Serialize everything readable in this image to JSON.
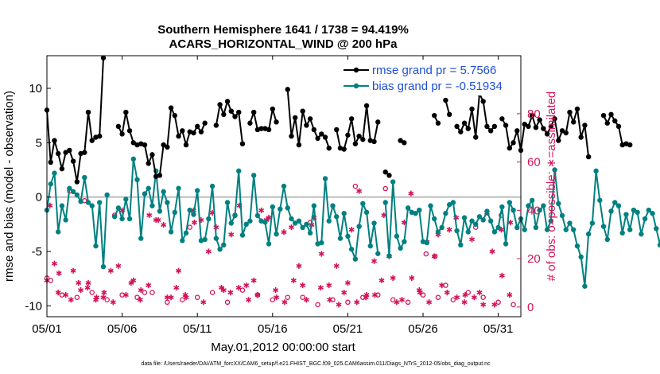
{
  "chart_data": {
    "type": "line",
    "title": [
      "Southern Hemisphere 1641 / 1738 = 94.419%",
      "ACARS_HORIZONTAL_WIND @ 200 hPa"
    ],
    "xlabel": "May.01,2012 00:00:00 start",
    "ylabel_left": "rmse and bias (model - observation)",
    "ylabel_right": "# of obs: o=possible; ∗=assimilated",
    "footer": "data file: /Users/raeder/DAI/ATM_forcXX/CAM6_setup/f.e21.FHIST_BGC.f09_025.CAM6assim.011/Diags_NTrS_2012-05/obs_diag_output.nc",
    "xlim": [
      0,
      31.5
    ],
    "ylim_left": [
      -11,
      13
    ],
    "ylim_right": [
      -4,
      104
    ],
    "x_ticks": [
      {
        "value": 0,
        "label": "05/01"
      },
      {
        "value": 5,
        "label": "05/06"
      },
      {
        "value": 10,
        "label": "05/11"
      },
      {
        "value": 15,
        "label": "05/16"
      },
      {
        "value": 20,
        "label": "05/21"
      },
      {
        "value": 25,
        "label": "05/26"
      },
      {
        "value": 30,
        "label": "05/31"
      }
    ],
    "y_ticks_left": [
      {
        "value": 10,
        "label": "10"
      },
      {
        "value": 5,
        "label": "5"
      },
      {
        "value": 0,
        "label": "0"
      },
      {
        "value": -5,
        "label": "-5"
      },
      {
        "value": -10,
        "label": "-10"
      }
    ],
    "y_ticks_right": [
      {
        "value": 80,
        "label": "80"
      },
      {
        "value": 60,
        "label": "60"
      },
      {
        "value": 40,
        "label": "40"
      },
      {
        "value": 20,
        "label": "20"
      },
      {
        "value": 0,
        "label": "0"
      }
    ],
    "x_step_days": 0.25,
    "colors": {
      "rmse": "#000000",
      "bias": "#008080",
      "obs": "#d4145a",
      "zero_line": "#bbbbbb",
      "legend_text": "#1f4fd6"
    },
    "series": [
      {
        "name": "rmse",
        "legend": "rmse grand pr = 5.7566",
        "values": [
          8.0,
          3.2,
          5.2,
          4.0,
          2.6,
          4.1,
          4.3,
          3.3,
          1.4,
          4.0,
          4.1,
          7.8,
          5.2,
          5.5,
          5.6,
          12.8,
          null,
          null,
          null,
          6.5,
          5.8,
          7.8,
          6.1,
          5.0,
          4.8,
          4.9,
          4.8,
          3.1,
          3.9,
          1.9,
          2.0,
          4.8,
          4.6,
          8.2,
          7.5,
          5.6,
          6.1,
          4.8,
          6.0,
          5.9,
          6.5,
          6.0,
          6.8,
          null,
          null,
          6.6,
          8.5,
          7.6,
          8.8,
          7.9,
          7.4,
          7.8,
          4.9,
          null,
          6.8,
          7.8,
          6.2,
          6.3,
          6.3,
          6.2,
          8.1,
          6.9,
          null,
          null,
          9.9,
          5.6,
          7.3,
          4.8,
          7.9,
          6.6,
          7.2,
          6.2,
          5.4,
          5.8,
          5.5,
          4.5,
          null,
          6.2,
          4.5,
          4.4,
          5.7,
          7.2,
          4.9,
          5.6,
          5.3,
          8.4,
          5.2,
          5.1,
          6.9,
          null,
          2.3,
          2.0,
          null,
          null,
          5.2,
          5.0,
          null,
          null,
          null,
          null,
          null,
          null,
          null,
          7.5,
          6.8,
          null,
          8.9,
          7.6,
          null,
          6.5,
          6.0,
          6.8,
          6.3,
          8.1,
          5.5,
          9.5,
          8.8,
          6.5,
          6.1,
          6.5,
          null,
          7.2,
          6.6,
          4.5,
          5.0,
          6.1,
          4.3,
          6.7,
          6.5,
          7.5,
          6.4,
          7.1,
          6.3,
          5.8,
          6.5,
          7.2,
          5.2,
          6.1,
          5.9,
          7.8,
          6.9,
          8.1,
          5.5,
          6.6,
          3.7,
          null,
          null,
          null,
          7.5,
          6.8,
          7.6,
          7.0,
          6.5,
          4.8,
          4.9,
          4.8
        ],
        "connected": true
      },
      {
        "name": "bias",
        "legend": "bias grand pr = -0.51934",
        "values": [
          -1.2,
          1.2,
          2.2,
          -3.2,
          -0.8,
          -2.1,
          0.8,
          0.5,
          0.2,
          -0.4,
          1.8,
          -0.5,
          -0.8,
          -4.5,
          -0.5,
          -6.4,
          0.2,
          null,
          -1.8,
          -1.0,
          -2.0,
          -0.2,
          -2.0,
          3.5,
          1.6,
          -3.8,
          0.3,
          0.8,
          -0.8,
          2.4,
          -1.3,
          0.5,
          -0.5,
          -3.2,
          -1.4,
          0.8,
          -4.0,
          -3.3,
          -1.2,
          -1.6,
          0.6,
          -4.0,
          -3.9,
          -2.0,
          1.0,
          -3.8,
          -4.8,
          -4.4,
          -0.5,
          -2.4,
          -1.7,
          2.4,
          -3.5,
          -2.5,
          -2.2,
          2.0,
          -1.7,
          -2.2,
          -2.3,
          -4.3,
          -0.9,
          -3.4,
          -1.1,
          1.0,
          -1.0,
          -2.0,
          -2.4,
          -2.2,
          -2.8,
          -2.5,
          -3.3,
          -0.8,
          -4.3,
          -4.2,
          1.7,
          -2.2,
          -0.8,
          -1.8,
          -3.8,
          -1.5,
          -3.6,
          -4.8,
          -5.7,
          -2.7,
          -0.6,
          -1.4,
          -4.5,
          -2.4,
          -5.2,
          null,
          -0.5,
          -5.4,
          1.4,
          -3.6,
          -4.7,
          -4.1,
          -1.0,
          -1.4,
          -1.5,
          -1.2,
          -4.1,
          -4.2,
          -0.8,
          -2.0,
          -3.2,
          -2.8,
          -1.5,
          -0.7,
          -0.5,
          -3.1,
          -4.4,
          -1.9,
          -3.2,
          -2.2,
          -2.5,
          -1.8,
          -2.1,
          -1.3,
          -2.2,
          -3.2,
          -2.8,
          -0.9,
          -4.3,
          -0.5,
          -1.2,
          -2.8,
          -2.0,
          -3.0,
          -0.8,
          -0.3,
          -2.8,
          -1.2,
          -0.8,
          -3.0,
          -2.2,
          2.5,
          -0.6,
          -1.7,
          -3.0,
          -2.4,
          -3.0,
          -4.5,
          -5.5,
          -8.2,
          -3.4,
          -2.4,
          2.4,
          -0.3,
          -2.7,
          -3.9,
          -1.3,
          -0.5,
          -0.8,
          -3.3,
          -1.6,
          -3.0,
          -1.2,
          -1.4,
          -3.4,
          -2.0,
          -1.2,
          -1.5,
          -2.9,
          -4.4,
          -1.1,
          -1.0,
          -2.0,
          -3.2
        ],
        "connected": true
      },
      {
        "name": "obs_possible",
        "marker": "o",
        "x": [
          0,
          0.25,
          1,
          2,
          3,
          4,
          5,
          6,
          7,
          8,
          9,
          10,
          11,
          12,
          13,
          14,
          15,
          16,
          17,
          18,
          19,
          20,
          21,
          22,
          23,
          24,
          25,
          26,
          27,
          28,
          29,
          30,
          31,
          1.5,
          2.5,
          4.5,
          6.5,
          9.5,
          12.5,
          17.5,
          20.5,
          22.5,
          25.2,
          25.8,
          26.5,
          28.5,
          30.2
        ],
        "values": [
          12,
          11,
          5,
          4,
          6,
          3,
          5,
          4,
          6,
          2,
          3,
          4,
          6,
          2,
          7,
          5,
          3,
          4,
          4,
          1,
          3,
          2,
          4,
          5,
          3,
          2,
          5,
          4,
          3,
          6,
          4,
          2,
          1,
          48,
          44,
          38,
          6,
          33,
          38,
          35,
          50,
          49,
          22,
          21,
          9,
          33,
          38
        ]
      },
      {
        "name": "obs_assimilated",
        "marker": "*",
        "x": [
          0,
          0.5,
          0.75,
          1.25,
          1.75,
          2.25,
          2.75,
          3.25,
          3.75,
          4.25,
          4.75,
          5.25,
          5.75,
          6.25,
          6.75,
          7.25,
          7.75,
          8.25,
          8.75,
          9.25,
          9.75,
          10.25,
          10.75,
          11.25,
          11.75,
          12.25,
          12.75,
          13.25,
          13.75,
          14.25,
          14.75,
          15.25,
          15.75,
          16.25,
          16.75,
          17.25,
          17.75,
          18.25,
          18.75,
          19.25,
          19.75,
          20.25,
          20.75,
          21.25,
          21.75,
          22.25,
          22.75,
          23.25,
          23.75,
          24.25,
          24.75,
          25.25,
          25.75,
          26.25,
          26.75,
          27.25,
          27.75,
          28.25,
          28.75,
          29.25,
          29.75,
          30.25,
          30.75,
          0.2,
          0.8,
          1.6,
          2.1,
          2.7,
          3.3,
          3.8,
          4.4,
          5.0,
          5.6,
          6.2,
          6.8,
          7.4,
          8.0,
          8.6,
          9.2,
          9.8,
          10.4,
          11.0,
          11.6,
          12.2,
          12.8,
          13.4,
          14.0,
          14.6,
          15.2,
          15.8,
          16.4,
          17.0,
          17.6,
          18.2,
          18.8,
          19.4,
          20.0,
          20.6,
          21.2,
          21.8,
          22.4,
          23.0,
          23.6,
          24.2,
          24.8,
          25.4,
          26.0,
          26.6,
          27.2,
          27.8,
          28.4,
          29.0,
          29.6,
          30.2,
          30.8
        ],
        "values": [
          11,
          18,
          6,
          5,
          15,
          7,
          10,
          3,
          4,
          15,
          17,
          5,
          11,
          7,
          9,
          36,
          34,
          4,
          15,
          4,
          40,
          36,
          23,
          33,
          7,
          30,
          8,
          9,
          11,
          40,
          37,
          4,
          31,
          33,
          17,
          3,
          37,
          22,
          9,
          17,
          6,
          32,
          48,
          5,
          19,
          11,
          21,
          2,
          35,
          12,
          7,
          27,
          21,
          9,
          32,
          4,
          2,
          28,
          6,
          39,
          1,
          13,
          5,
          42,
          14,
          3,
          10,
          8,
          4,
          6,
          2,
          40,
          10,
          3,
          38,
          36,
          4,
          8,
          5,
          35,
          2,
          39,
          8,
          6,
          42,
          3,
          5,
          36,
          7,
          2,
          11,
          9,
          34,
          8,
          3,
          1,
          10,
          2,
          4,
          5,
          38,
          12,
          3,
          47,
          6,
          2,
          30,
          6,
          37,
          5,
          4,
          1,
          23,
          32,
          35
        ]
      }
    ]
  }
}
